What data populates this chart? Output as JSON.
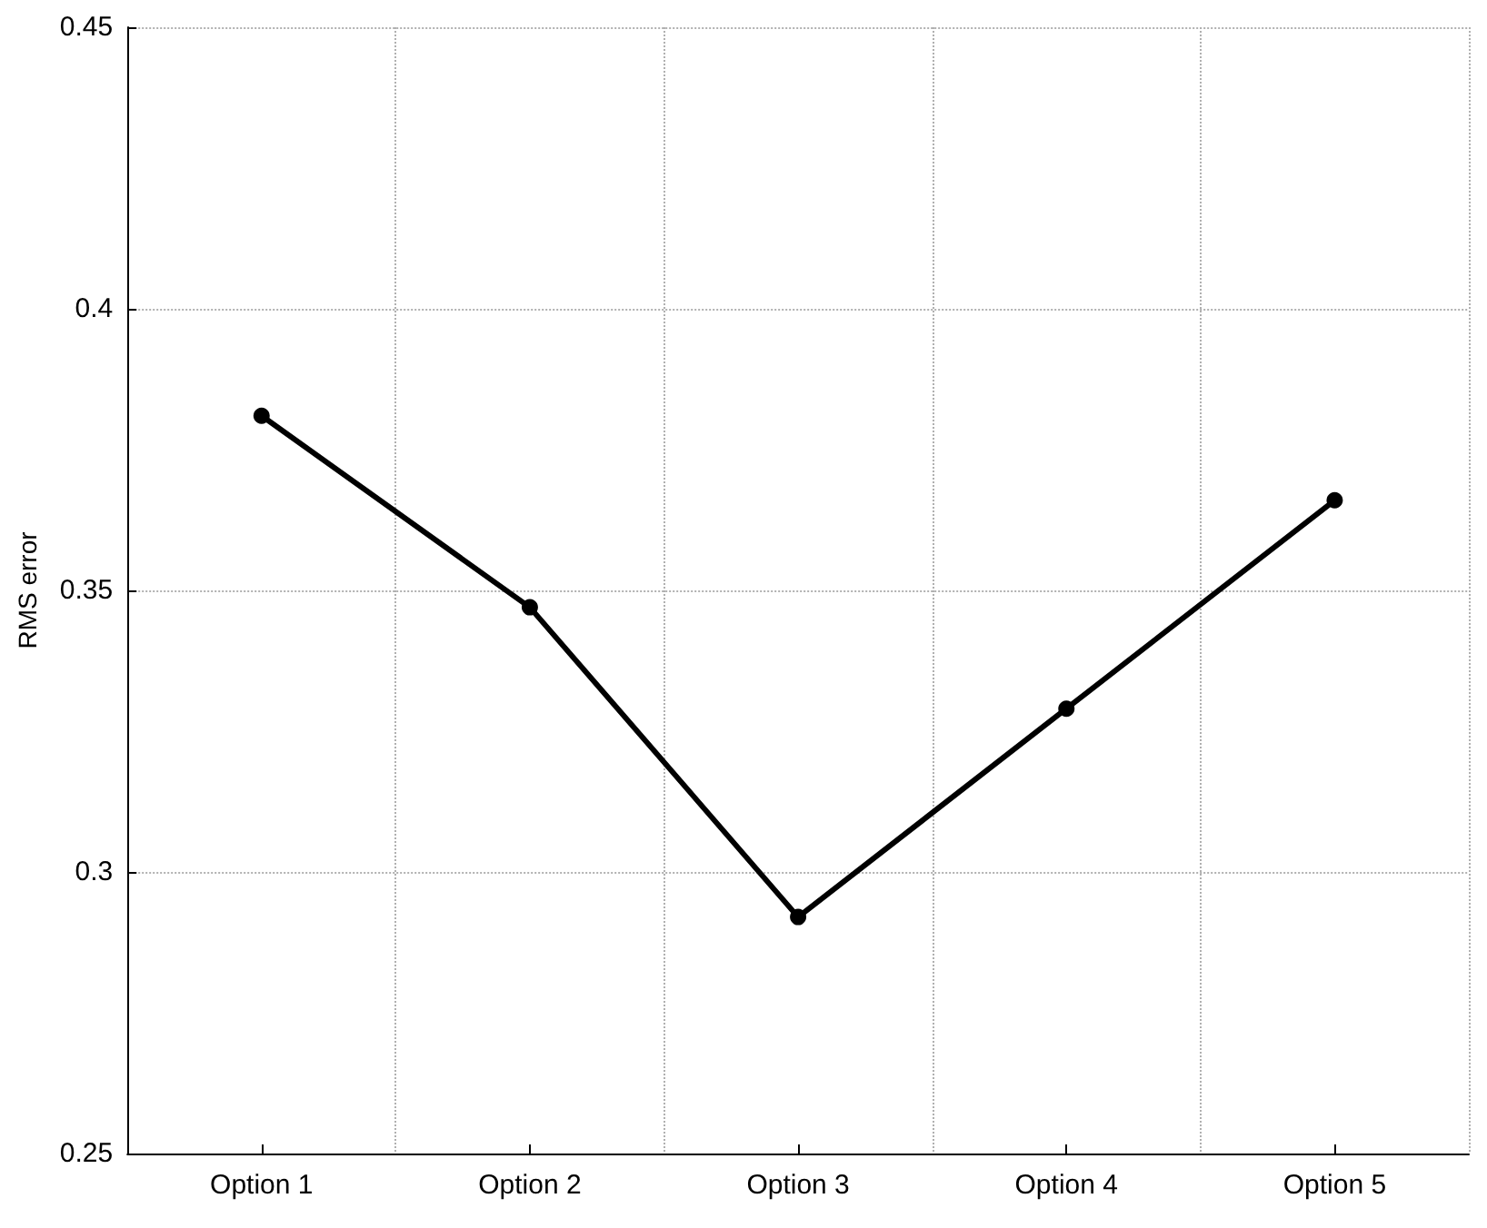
{
  "chart_data": {
    "type": "line",
    "ylabel": "RMS error",
    "categories": [
      "Option 1",
      "Option 2",
      "Option 3",
      "Option 4",
      "Option 5"
    ],
    "values": [
      0.381,
      0.347,
      0.292,
      0.329,
      0.366
    ],
    "color": "#000000",
    "marker": "circle",
    "line_style": "solid",
    "ylim": [
      0.25,
      0.45
    ],
    "yticks": [
      0.25,
      0.3,
      0.35,
      0.4,
      0.45
    ],
    "grid": true
  }
}
